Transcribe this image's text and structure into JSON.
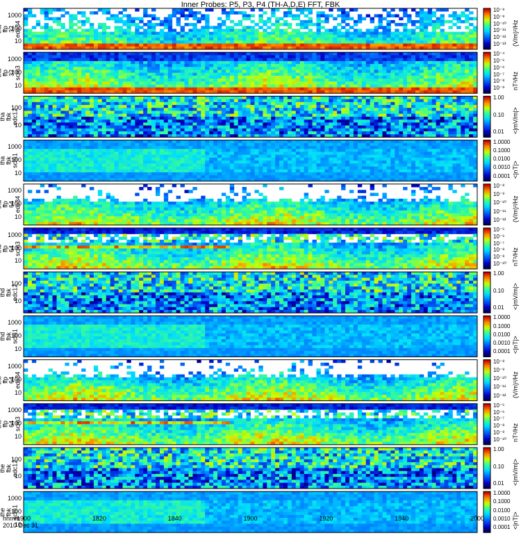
{
  "chart_data": {
    "type": "heatmap",
    "title": "Inner Probes: P5, P3, P4 (TH-A,D,E) FFT, FBK",
    "x_ticks": [
      "1900",
      "1820",
      "1840",
      "1900",
      "1920",
      "1940",
      "2000"
    ],
    "footer": {
      "hhmm": "hhmm",
      "date": "2010 Dec 31"
    },
    "panels": [
      {
        "label": [
          "tha",
          "ffp",
          "32",
          "edc34"
        ],
        "yticks": [
          "1000",
          "100",
          "10"
        ],
        "colorbar_ticks": [
          "10⁻⁸",
          "10⁻⁹",
          "10⁻¹⁰",
          "10⁻¹¹",
          "10⁻¹²",
          "10⁻¹³"
        ],
        "colorbar_unit": "(V/m)²/Hz",
        "style": "efield_sparse"
      },
      {
        "label": [
          "tha",
          "ffp",
          "32",
          "scm3"
        ],
        "yticks": [
          "1000",
          "100",
          "10"
        ],
        "colorbar_ticks": [
          "10⁻⁴",
          "10⁻⁵",
          "10⁻⁶",
          "10⁻⁷",
          "10⁻⁸",
          "10⁻⁹"
        ],
        "colorbar_unit": "nT²/Hz",
        "style": "bfield_dense"
      },
      {
        "label": [
          "tha",
          "fbk",
          "edc12"
        ],
        "yticks": [
          "100",
          "10"
        ],
        "colorbar_ticks": [
          "1.00",
          "0.10",
          "0.01"
        ],
        "colorbar_unit": "<|mV/m|>",
        "style": "fbk_e"
      },
      {
        "label": [
          "tha",
          "fbk",
          "scm1"
        ],
        "yticks": [
          "1000",
          "100",
          "10"
        ],
        "colorbar_ticks": [
          "1.0000",
          "0.1000",
          "0.0100",
          "0.0010",
          "0.0001"
        ],
        "colorbar_unit": "<|nT|>",
        "style": "fbk_b"
      },
      {
        "label": [
          "thd",
          "ffp",
          "64",
          "edc34"
        ],
        "yticks": [
          "1000",
          "100",
          "10"
        ],
        "colorbar_ticks": [
          "10⁻⁸",
          "10⁻⁹",
          "10⁻¹⁰",
          "10⁻¹¹",
          "10⁻¹²"
        ],
        "colorbar_unit": "(V/m)²/Hz",
        "style": "efield_mid"
      },
      {
        "label": [
          "thd",
          "ffp",
          "64",
          "scm3"
        ],
        "yticks": [
          "1000",
          "100",
          "10"
        ],
        "colorbar_ticks": [
          "10⁻⁵",
          "10⁻⁶",
          "10⁻⁷",
          "10⁻⁸",
          "10⁻⁹",
          "10⁻¹⁰"
        ],
        "colorbar_unit": "nT²/Hz",
        "style": "bfield_chorus"
      },
      {
        "label": [
          "thd",
          "fbk",
          "edc12"
        ],
        "yticks": [
          "100",
          "10"
        ],
        "colorbar_ticks": [
          "1.00",
          "0.10",
          "0.01"
        ],
        "colorbar_unit": "<|mV/m|>",
        "style": "fbk_e"
      },
      {
        "label": [
          "thd",
          "fbk",
          "scm1"
        ],
        "yticks": [
          "1000",
          "100",
          "10"
        ],
        "colorbar_ticks": [
          "1.0000",
          "0.1000",
          "0.0100",
          "0.0010",
          "0.0001"
        ],
        "colorbar_unit": "<|nT|>",
        "style": "fbk_b"
      },
      {
        "label": [
          "the",
          "ffp",
          "64",
          "edc34"
        ],
        "yticks": [
          "1000",
          "100",
          "10"
        ],
        "colorbar_ticks": [
          "10⁻⁸",
          "10⁻⁹",
          "10⁻¹⁰",
          "10⁻¹¹",
          "10⁻¹²"
        ],
        "colorbar_unit": "(V/m)²/Hz",
        "style": "efield_mid"
      },
      {
        "label": [
          "the",
          "ffp",
          "64",
          "scm3"
        ],
        "yticks": [
          "1000",
          "100",
          "10"
        ],
        "colorbar_ticks": [
          "10⁻⁵",
          "10⁻⁶",
          "10⁻⁷",
          "10⁻⁸",
          "10⁻⁹",
          "10⁻¹⁰"
        ],
        "colorbar_unit": "nT²/Hz",
        "style": "bfield_chorus"
      },
      {
        "label": [
          "the",
          "fbk",
          "edc12"
        ],
        "yticks": [
          "100",
          "10"
        ],
        "colorbar_ticks": [
          "1.00",
          "0.10",
          "0.01"
        ],
        "colorbar_unit": "<|mV/m|>",
        "style": "fbk_e"
      },
      {
        "label": [
          "the",
          "fbk",
          "scm1"
        ],
        "yticks": [
          "1000",
          "100",
          "10"
        ],
        "colorbar_ticks": [
          "1.0000",
          "0.1000",
          "0.0100",
          "0.0010",
          "0.0001"
        ],
        "colorbar_unit": "<|nT|>",
        "style": "fbk_b"
      }
    ]
  }
}
